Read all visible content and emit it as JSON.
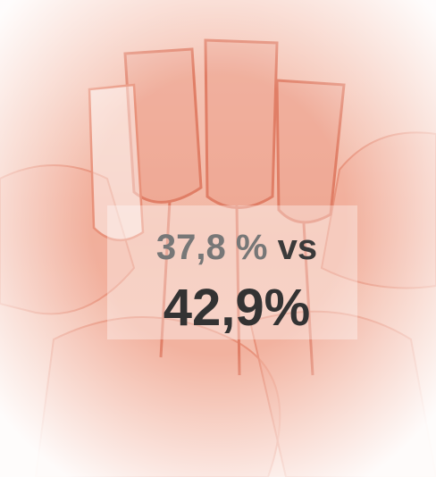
{
  "stat": {
    "first": "37,8 %",
    "connector": "vs",
    "second": "42,9%"
  }
}
